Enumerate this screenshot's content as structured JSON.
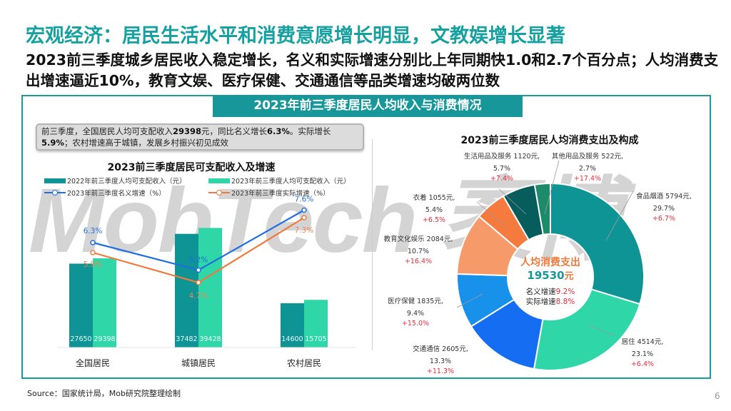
{
  "header": {
    "title": "宏观经济：居民生活水平和消费意愿增长明显，文教娱增长显著",
    "subtitle": "2023前三季度城乡居民收入稳定增长，名义和实际增速分别比上年同期快1.0和2.7个百分点；人均消费支出增速逼近10%，教育文娱、医疗保健、交通通信等品类增速均破两位数"
  },
  "panel": {
    "tab_title": "2023年前三季度居民人均收入与消费情况",
    "summary": {
      "part1": "前三季度，全国居民人均可支配收入",
      "income": "29398",
      "part2": "元，同比名义增长",
      "nominal": "6.3%",
      "part3": "。实际增长",
      "real": "5.9%",
      "part4": "；农村增速高于城镇，发展乡村振兴初见成效"
    }
  },
  "watermark": "MobTech 袤博",
  "colors": {
    "accent": "#17979a",
    "bar_2022": "#0e9494",
    "bar_2023": "#2ed6a8",
    "line_nominal": "#1f6fe0",
    "line_real": "#ee7a3c",
    "growth_red": "#e0303a"
  },
  "chart_data": [
    {
      "type": "bar",
      "title": "2023前三季度居民可支配收入及增速",
      "categories": [
        "全国居民",
        "城镇居民",
        "农村居民"
      ],
      "series": [
        {
          "name": "2022年前三季度人均可支配收入（元）",
          "kind": "bar",
          "color": "#0e9494",
          "values": [
            27650,
            37482,
            14600
          ]
        },
        {
          "name": "2023年前三季度人均可支配收入（元）",
          "kind": "bar",
          "color": "#2ed6a8",
          "values": [
            29398,
            39428,
            15705
          ]
        },
        {
          "name": "2023年前三季度名义增速（%）",
          "kind": "line",
          "color": "#1f6fe0",
          "values": [
            6.3,
            5.2,
            7.6
          ],
          "labels": [
            "6.3%",
            "5.2%",
            "7.6%"
          ]
        },
        {
          "name": "2023年前三季度实际增速（%）",
          "kind": "line",
          "color": "#ee7a3c",
          "values": [
            5.9,
            4.7,
            7.3
          ],
          "labels": [
            "5.9%",
            "4.7%",
            "7.3%"
          ]
        }
      ],
      "xlabel": "",
      "ylabel": "",
      "grid": false,
      "legend_position": "top"
    },
    {
      "type": "pie",
      "donut": true,
      "title": "2023前三季度居民人均消费支出及构成",
      "center_label": {
        "line1": "人均消费支出",
        "total": "19530",
        "unit": "元",
        "nominal_label": "名义增速",
        "nominal": "9.2%",
        "real_label": "实际增速",
        "real": "8.8%"
      },
      "slices": [
        {
          "name": "食品烟酒",
          "amount": 5794,
          "share": 29.7,
          "growth": "+6.7%",
          "color": "#0e9494"
        },
        {
          "name": "居住",
          "amount": 4514,
          "share": 23.1,
          "growth": "+6.4%",
          "color": "#2ed6a8"
        },
        {
          "name": "交通通信",
          "amount": 2605,
          "share": 13.3,
          "growth": "+11.3%",
          "color": "#156ef2"
        },
        {
          "name": "医疗保健",
          "amount": 1835,
          "share": 9.4,
          "growth": "+15.0%",
          "color": "#1791ea"
        },
        {
          "name": "教育文化娱乐",
          "amount": 2084,
          "share": 10.7,
          "growth": "+16.4%",
          "color": "#f79a6a"
        },
        {
          "name": "衣着",
          "amount": 1055,
          "share": 5.4,
          "growth": "+6.5%",
          "color": "#f47a3e"
        },
        {
          "name": "生活用品及服务",
          "amount": 1120,
          "share": 5.7,
          "growth": "+7.4%",
          "color": "#075c5c"
        },
        {
          "name": "其他用品及服务",
          "amount": 522,
          "share": 2.7,
          "growth": "+17.4%",
          "color": "#1f8a6a"
        }
      ],
      "slice_labels": [
        {
          "line1": "食品烟酒 5794元,",
          "line2": "29.7%",
          "line3": "+6.7%"
        },
        {
          "line1": "居住 4514元,",
          "line2": "23.1%",
          "line3": "+6.4%"
        },
        {
          "line1": "交通通信 2605元,",
          "line2": "13.3%",
          "line3": "+11.3%"
        },
        {
          "line1": "医疗保健 1835元,",
          "line2": "9.4%",
          "line3": "+15.0%"
        },
        {
          "line1": "教育文化娱乐 2084元,",
          "line2": "10.7%",
          "line3": "+16.4%"
        },
        {
          "line1": "衣着 1055元,",
          "line2": "5.4%",
          "line3": "+6.5%"
        },
        {
          "line1": "生活用品及服务 1120元,",
          "line2": "5.7%",
          "line3": "+7.4%"
        },
        {
          "line1": "其他用品及服务 522元,",
          "line2": "2.7%",
          "line3": "+17.4%"
        }
      ]
    }
  ],
  "footer": {
    "source": "Source：国家统计局，Mob研究院整理绘制",
    "page": "6"
  }
}
